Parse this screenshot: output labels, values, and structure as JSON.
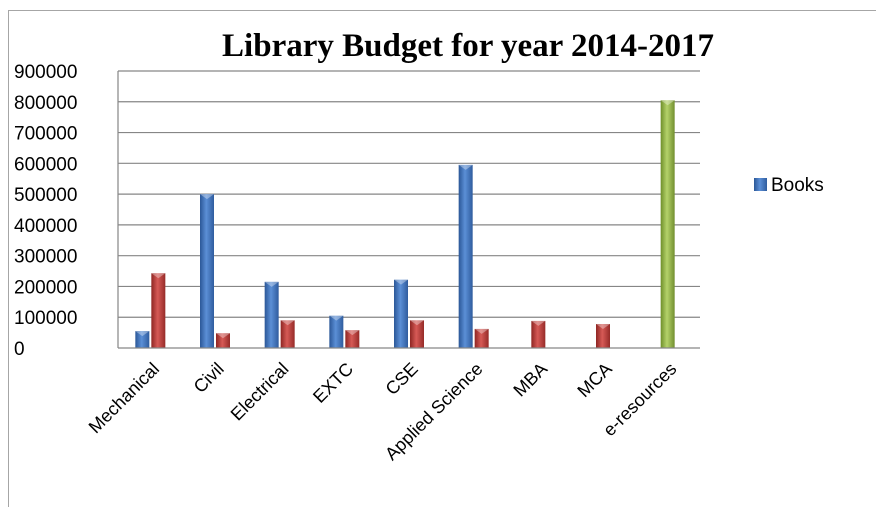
{
  "chart_data": {
    "type": "bar",
    "title": "Library Budget for year 2014-2017",
    "xlabel": "",
    "ylabel": "",
    "ylim": [
      0,
      900000
    ],
    "yticks": [
      0,
      100000,
      200000,
      300000,
      400000,
      500000,
      600000,
      700000,
      800000,
      900000
    ],
    "grid": true,
    "legend": {
      "position": "right",
      "entries": [
        "Books"
      ]
    },
    "categories": [
      "Mechanical",
      "Civil",
      "Electrical",
      "EXTC",
      "CSE",
      "Applied Science",
      "MBA",
      "MCA",
      "e-resources"
    ],
    "series": [
      {
        "name": "Books",
        "color": "#4f81bd",
        "values": [
          55000,
          500000,
          215000,
          105000,
          222000,
          595000,
          null,
          null,
          null
        ]
      },
      {
        "color": "#c0504d",
        "values": [
          243000,
          48000,
          90000,
          58000,
          90000,
          62000,
          88000,
          78000,
          null
        ]
      },
      {
        "color": "#9bbb59",
        "values": [
          null,
          null,
          null,
          null,
          null,
          null,
          null,
          null,
          805000
        ]
      }
    ]
  }
}
